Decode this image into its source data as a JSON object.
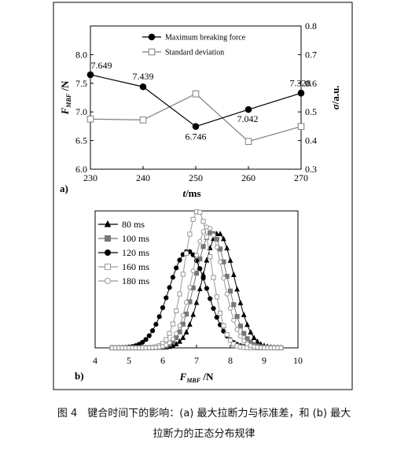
{
  "figure_caption": {
    "line1": "图 4　键合时间下的影响：(a) 最大拉断力与标准差，和 (b) 最大",
    "line2": "拉断力的正态分布规律"
  },
  "chart_data": [
    {
      "panel_label": "a)",
      "type": "line",
      "x": [
        230,
        240,
        250,
        260,
        270
      ],
      "xlabel": {
        "italic": "t",
        "rest": "/ms"
      },
      "ylabel": {
        "main": "F",
        "sub": "MBF",
        "rest": " /N"
      },
      "y2label": {
        "italic": "σ",
        "rest": "/a.u."
      },
      "xlim": [
        230,
        270
      ],
      "ylim": [
        6.0,
        8.5
      ],
      "y2lim": [
        0.3,
        0.8
      ],
      "xticks": [
        "230",
        "240",
        "250",
        "260",
        "270"
      ],
      "yticks": [
        "6.0",
        "6.5",
        "7.0",
        "7.5",
        "8.0"
      ],
      "y2ticks": [
        "0.3",
        "0.4",
        "0.5",
        "0.6",
        "0.7",
        "0.8"
      ],
      "legend_position": "top-right",
      "series": [
        {
          "name": "Maximum breaking force",
          "axis": "left",
          "marker": "filled-circle",
          "color": "#000000",
          "values": [
            7.649,
            7.439,
            6.746,
            7.042,
            7.328
          ],
          "labels": [
            "7.649",
            "7.439",
            "6.746",
            "7.042",
            "7.328"
          ]
        },
        {
          "name": "Standard deviation",
          "axis": "right",
          "marker": "open-square",
          "color": "#7f7f7f",
          "values": [
            0.475,
            0.472,
            0.563,
            0.397,
            0.449
          ]
        }
      ]
    },
    {
      "panel_label": "b)",
      "type": "line",
      "xlabel": {
        "main": "F",
        "sub": "MBF",
        "rest": " /N"
      },
      "xlim": [
        4,
        10
      ],
      "ylim": [
        0,
        1.0
      ],
      "xticks": [
        "4",
        "5",
        "6",
        "7",
        "8",
        "9",
        "10"
      ],
      "legend_position": "top-left",
      "series": [
        {
          "name": "80 ms",
          "marker": "filled-triangle",
          "color": "#000000",
          "mean": 7.649,
          "sd": 0.475
        },
        {
          "name": "100 ms",
          "marker": "filled-square",
          "color": "#777777",
          "mean": 7.439,
          "sd": 0.472
        },
        {
          "name": "120 ms",
          "marker": "filled-circle",
          "color": "#000000",
          "mean": 6.746,
          "sd": 0.563
        },
        {
          "name": "160 ms",
          "marker": "open-square",
          "color": "#999999",
          "mean": 7.042,
          "sd": 0.397
        },
        {
          "name": "180 ms",
          "marker": "open-circle",
          "color": "#999999",
          "mean": 7.328,
          "sd": 0.449
        }
      ]
    }
  ]
}
